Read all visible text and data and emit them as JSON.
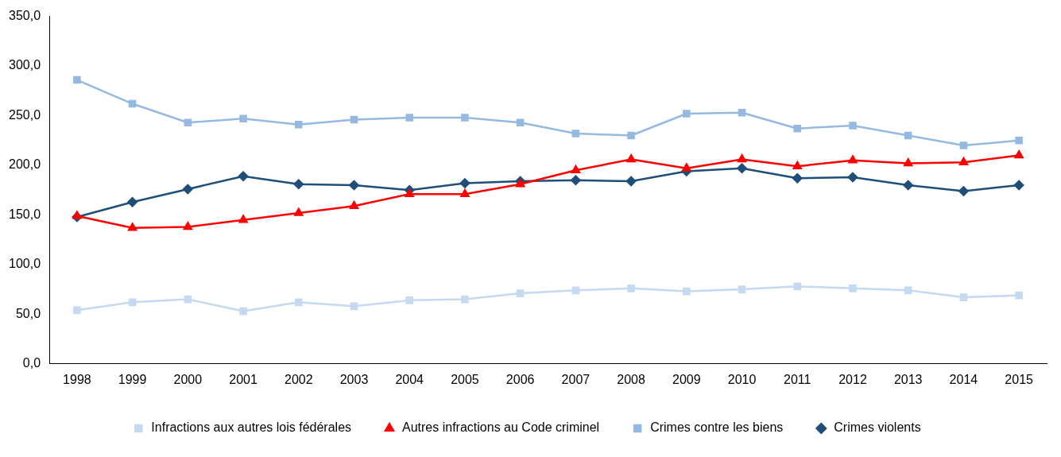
{
  "chart_data": {
    "type": "line",
    "categories": [
      "1998",
      "1999",
      "2000",
      "2001",
      "2002",
      "2003",
      "2004",
      "2005",
      "2006",
      "2007",
      "2008",
      "2009",
      "2010",
      "2011",
      "2012",
      "2013",
      "2014",
      "2015"
    ],
    "series": [
      {
        "name": "Crimes violents",
        "color": "#1f4e79",
        "marker": "diamond",
        "values": [
          148,
          163,
          176,
          189,
          181,
          180,
          175,
          182,
          184,
          185,
          184,
          194,
          197,
          187,
          188,
          180,
          174,
          180
        ]
      },
      {
        "name": "Crimes contre les biens",
        "color": "#95b9e0",
        "marker": "square",
        "values": [
          286,
          262,
          243,
          247,
          241,
          246,
          248,
          248,
          243,
          232,
          230,
          252,
          253,
          237,
          240,
          230,
          220,
          225
        ]
      },
      {
        "name": "Autres infractions au Code criminel",
        "color": "#ff0000",
        "marker": "triangle",
        "values": [
          149,
          137,
          138,
          145,
          152,
          159,
          171,
          171,
          181,
          195,
          206,
          197,
          206,
          199,
          205,
          202,
          203,
          210
        ]
      },
      {
        "name": "Infractions aux autres lois fédérales",
        "color": "#c5d9f1",
        "marker": "square",
        "values": [
          54,
          62,
          65,
          53,
          62,
          58,
          64,
          65,
          71,
          74,
          76,
          73,
          75,
          78,
          76,
          74,
          67,
          69
        ]
      }
    ],
    "ylim": [
      0,
      350
    ],
    "yticks": [
      {
        "value": 0,
        "label": "0,0"
      },
      {
        "value": 50,
        "label": "50,0"
      },
      {
        "value": 100,
        "label": "100,0"
      },
      {
        "value": 150,
        "label": "150,0"
      },
      {
        "value": 200,
        "label": "200,0"
      },
      {
        "value": 250,
        "label": "250,0"
      },
      {
        "value": 300,
        "label": "300,0"
      },
      {
        "value": 350,
        "label": "350,0"
      }
    ],
    "grid": false,
    "legend": "bottom",
    "line_style": "solid"
  }
}
